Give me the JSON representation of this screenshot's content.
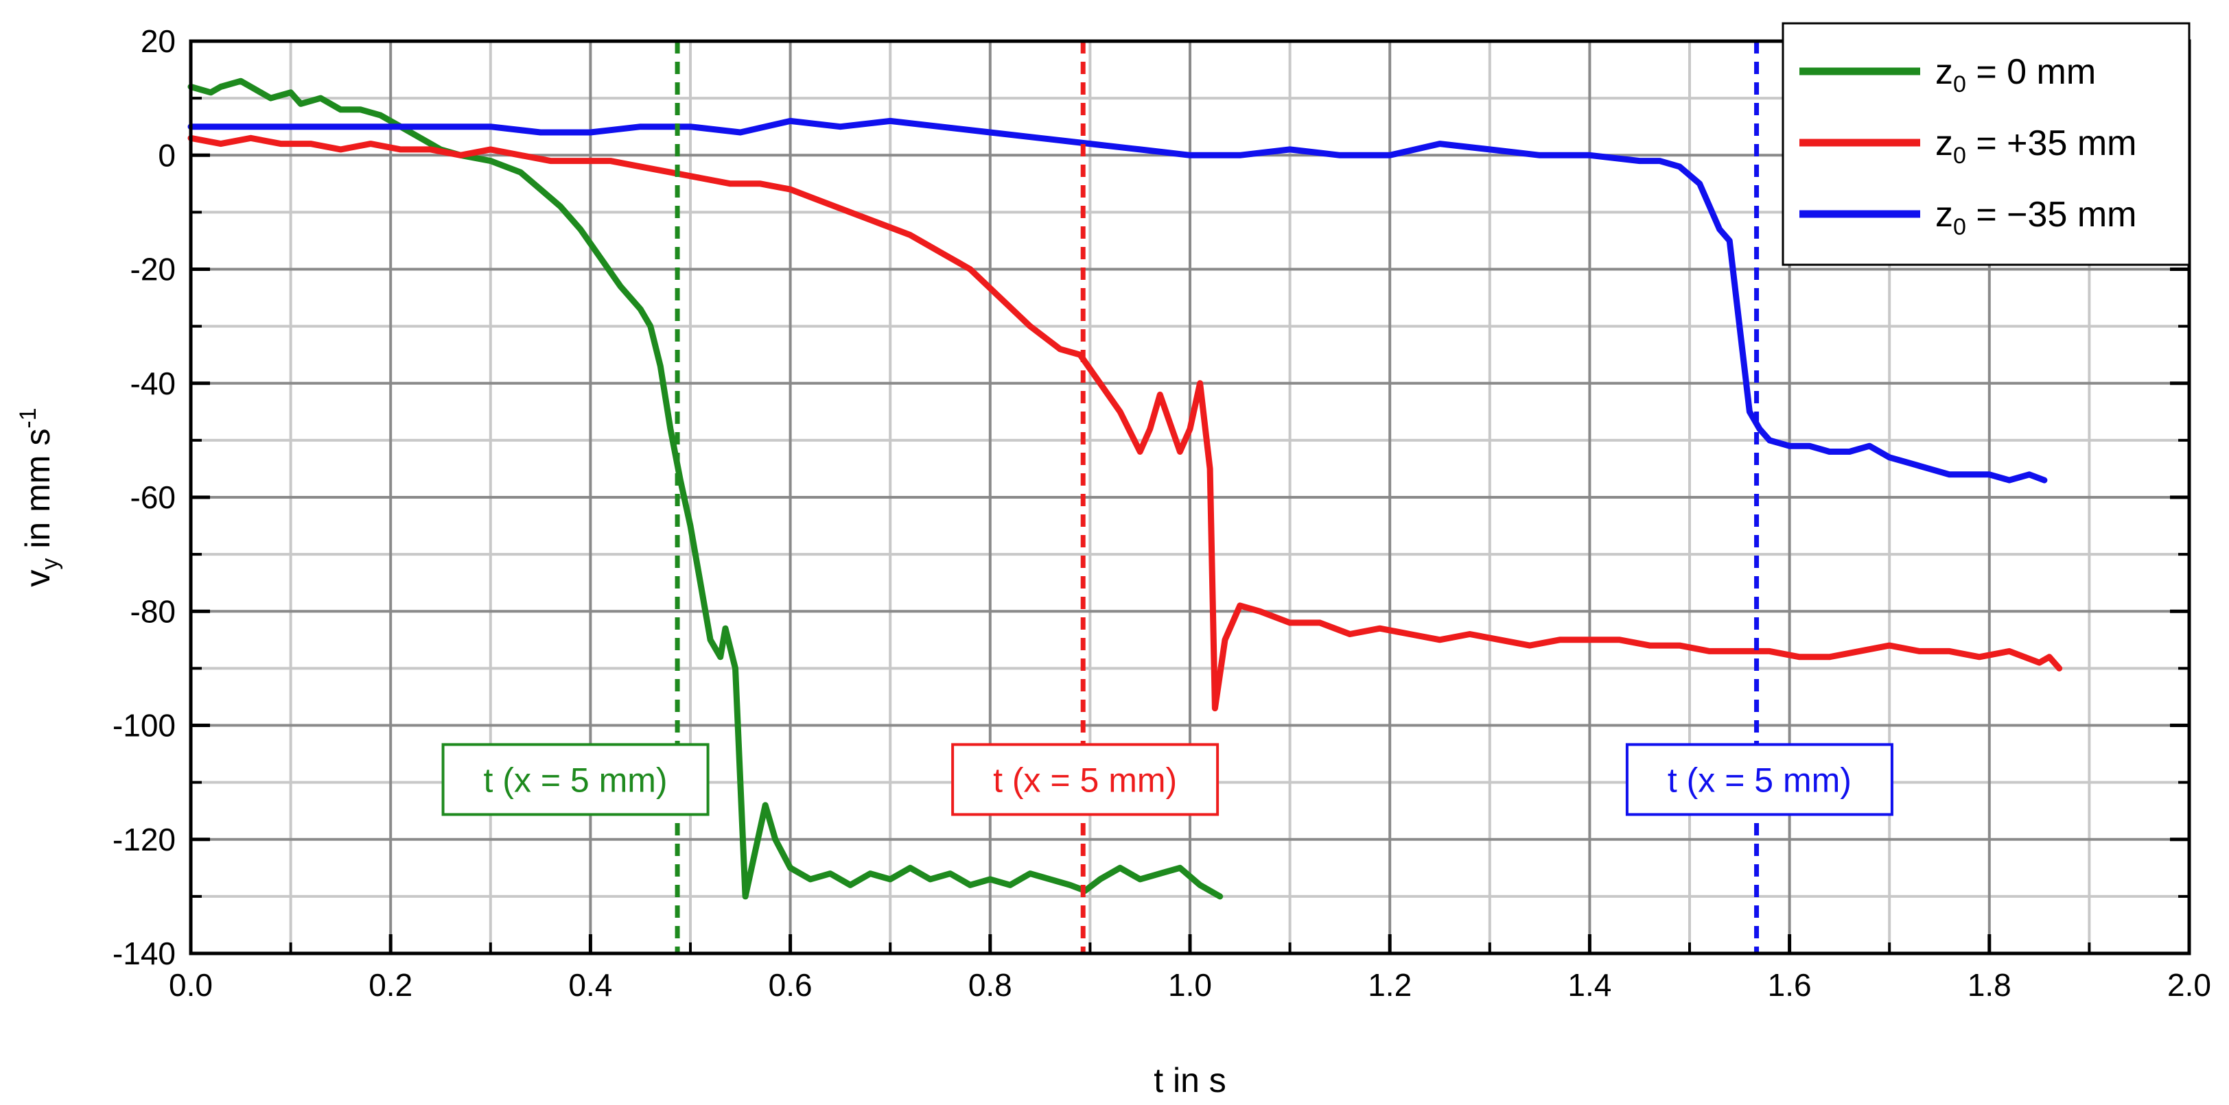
{
  "chart_data": {
    "type": "line",
    "xlabel": "t in s",
    "ylabel": {
      "main": "v",
      "sub": "y",
      "unit": " in mm s",
      "sup": "-1"
    },
    "xlim": [
      0.0,
      2.0
    ],
    "ylim": [
      -140,
      20
    ],
    "x_major_ticks": [
      0.0,
      0.2,
      0.4,
      0.6,
      0.8,
      1.0,
      1.2,
      1.4,
      1.6,
      1.8,
      2.0
    ],
    "x_tick_labels": [
      "0.0",
      "0.2",
      "0.4",
      "0.6",
      "0.8",
      "1.0",
      "1.2",
      "1.4",
      "1.6",
      "1.8",
      "2.0"
    ],
    "y_major_ticks": [
      -140,
      -120,
      -100,
      -80,
      -60,
      -40,
      -20,
      0,
      20
    ],
    "y_tick_labels": [
      "-140",
      "-120",
      "-100",
      "-80",
      "-60",
      "-40",
      "-20",
      "0",
      "20"
    ],
    "grid": true,
    "legend_position": "top-right",
    "series": [
      {
        "color": "#1e8a1e",
        "legend": {
          "sym": "z",
          "sub": "0",
          "rest": " =     0 mm"
        },
        "points": [
          [
            0.0,
            12
          ],
          [
            0.02,
            11
          ],
          [
            0.03,
            12
          ],
          [
            0.05,
            13
          ],
          [
            0.07,
            11
          ],
          [
            0.08,
            10
          ],
          [
            0.1,
            11
          ],
          [
            0.11,
            9
          ],
          [
            0.13,
            10
          ],
          [
            0.15,
            8
          ],
          [
            0.17,
            8
          ],
          [
            0.19,
            7
          ],
          [
            0.21,
            5
          ],
          [
            0.23,
            3
          ],
          [
            0.25,
            1
          ],
          [
            0.27,
            0
          ],
          [
            0.3,
            -1
          ],
          [
            0.33,
            -3
          ],
          [
            0.35,
            -6
          ],
          [
            0.37,
            -9
          ],
          [
            0.39,
            -13
          ],
          [
            0.41,
            -18
          ],
          [
            0.43,
            -23
          ],
          [
            0.45,
            -27
          ],
          [
            0.46,
            -30
          ],
          [
            0.47,
            -37
          ],
          [
            0.48,
            -48
          ],
          [
            0.49,
            -57
          ],
          [
            0.5,
            -65
          ],
          [
            0.51,
            -75
          ],
          [
            0.52,
            -85
          ],
          [
            0.53,
            -88
          ],
          [
            0.535,
            -83
          ],
          [
            0.545,
            -90
          ],
          [
            0.55,
            -110
          ],
          [
            0.555,
            -130
          ],
          [
            0.565,
            -122
          ],
          [
            0.575,
            -114
          ],
          [
            0.585,
            -120
          ],
          [
            0.6,
            -125
          ],
          [
            0.62,
            -127
          ],
          [
            0.64,
            -126
          ],
          [
            0.66,
            -128
          ],
          [
            0.68,
            -126
          ],
          [
            0.7,
            -127
          ],
          [
            0.72,
            -125
          ],
          [
            0.74,
            -127
          ],
          [
            0.76,
            -126
          ],
          [
            0.78,
            -128
          ],
          [
            0.8,
            -127
          ],
          [
            0.82,
            -128
          ],
          [
            0.84,
            -126
          ],
          [
            0.86,
            -127
          ],
          [
            0.88,
            -128
          ],
          [
            0.895,
            -129
          ],
          [
            0.91,
            -127
          ],
          [
            0.93,
            -125
          ],
          [
            0.95,
            -127
          ],
          [
            0.97,
            -126
          ],
          [
            0.99,
            -125
          ],
          [
            1.01,
            -128
          ],
          [
            1.03,
            -130
          ]
        ]
      },
      {
        "color": "#ee1c1c",
        "legend": {
          "sym": "z",
          "sub": "0",
          "rest": " = +35 mm"
        },
        "points": [
          [
            0.0,
            3
          ],
          [
            0.03,
            2
          ],
          [
            0.06,
            3
          ],
          [
            0.09,
            2
          ],
          [
            0.12,
            2
          ],
          [
            0.15,
            1
          ],
          [
            0.18,
            2
          ],
          [
            0.21,
            1
          ],
          [
            0.24,
            1
          ],
          [
            0.27,
            0
          ],
          [
            0.3,
            1
          ],
          [
            0.33,
            0
          ],
          [
            0.36,
            -1
          ],
          [
            0.39,
            -1
          ],
          [
            0.42,
            -1
          ],
          [
            0.45,
            -2
          ],
          [
            0.48,
            -3
          ],
          [
            0.51,
            -4
          ],
          [
            0.54,
            -5
          ],
          [
            0.57,
            -5
          ],
          [
            0.6,
            -6
          ],
          [
            0.63,
            -8
          ],
          [
            0.66,
            -10
          ],
          [
            0.69,
            -12
          ],
          [
            0.72,
            -14
          ],
          [
            0.75,
            -17
          ],
          [
            0.78,
            -20
          ],
          [
            0.81,
            -25
          ],
          [
            0.84,
            -30
          ],
          [
            0.87,
            -34
          ],
          [
            0.89,
            -35
          ],
          [
            0.91,
            -40
          ],
          [
            0.93,
            -45
          ],
          [
            0.95,
            -52
          ],
          [
            0.96,
            -48
          ],
          [
            0.97,
            -42
          ],
          [
            0.99,
            -52
          ],
          [
            1.0,
            -48
          ],
          [
            1.01,
            -40
          ],
          [
            1.02,
            -55
          ],
          [
            1.025,
            -97
          ],
          [
            1.035,
            -85
          ],
          [
            1.05,
            -79
          ],
          [
            1.07,
            -80
          ],
          [
            1.1,
            -82
          ],
          [
            1.13,
            -82
          ],
          [
            1.16,
            -84
          ],
          [
            1.19,
            -83
          ],
          [
            1.22,
            -84
          ],
          [
            1.25,
            -85
          ],
          [
            1.28,
            -84
          ],
          [
            1.31,
            -85
          ],
          [
            1.34,
            -86
          ],
          [
            1.37,
            -85
          ],
          [
            1.4,
            -85
          ],
          [
            1.43,
            -85
          ],
          [
            1.46,
            -86
          ],
          [
            1.49,
            -86
          ],
          [
            1.52,
            -87
          ],
          [
            1.55,
            -87
          ],
          [
            1.58,
            -87
          ],
          [
            1.61,
            -88
          ],
          [
            1.64,
            -88
          ],
          [
            1.67,
            -87
          ],
          [
            1.7,
            -86
          ],
          [
            1.73,
            -87
          ],
          [
            1.76,
            -87
          ],
          [
            1.79,
            -88
          ],
          [
            1.82,
            -87
          ],
          [
            1.85,
            -89
          ],
          [
            1.86,
            -88
          ],
          [
            1.87,
            -90
          ]
        ]
      },
      {
        "color": "#1010ee",
        "legend": {
          "sym": "z",
          "sub": "0",
          "rest": " = −35 mm"
        },
        "points": [
          [
            0.0,
            5
          ],
          [
            0.05,
            5
          ],
          [
            0.1,
            5
          ],
          [
            0.15,
            5
          ],
          [
            0.2,
            5
          ],
          [
            0.25,
            5
          ],
          [
            0.3,
            5
          ],
          [
            0.35,
            4
          ],
          [
            0.4,
            4
          ],
          [
            0.45,
            5
          ],
          [
            0.5,
            5
          ],
          [
            0.55,
            4
          ],
          [
            0.6,
            6
          ],
          [
            0.65,
            5
          ],
          [
            0.7,
            6
          ],
          [
            0.75,
            5
          ],
          [
            0.8,
            4
          ],
          [
            0.85,
            3
          ],
          [
            0.9,
            2
          ],
          [
            0.95,
            1
          ],
          [
            1.0,
            0
          ],
          [
            1.05,
            0
          ],
          [
            1.1,
            1
          ],
          [
            1.15,
            0
          ],
          [
            1.2,
            0
          ],
          [
            1.25,
            2
          ],
          [
            1.3,
            1
          ],
          [
            1.35,
            0
          ],
          [
            1.4,
            0
          ],
          [
            1.45,
            -1
          ],
          [
            1.47,
            -1
          ],
          [
            1.49,
            -2
          ],
          [
            1.51,
            -5
          ],
          [
            1.53,
            -13
          ],
          [
            1.54,
            -15
          ],
          [
            1.55,
            -30
          ],
          [
            1.56,
            -45
          ],
          [
            1.57,
            -48
          ],
          [
            1.58,
            -50
          ],
          [
            1.6,
            -51
          ],
          [
            1.62,
            -51
          ],
          [
            1.64,
            -52
          ],
          [
            1.66,
            -52
          ],
          [
            1.68,
            -51
          ],
          [
            1.7,
            -53
          ],
          [
            1.72,
            -54
          ],
          [
            1.74,
            -55
          ],
          [
            1.76,
            -56
          ],
          [
            1.78,
            -56
          ],
          [
            1.8,
            -56
          ],
          [
            1.82,
            -57
          ],
          [
            1.84,
            -56
          ],
          [
            1.855,
            -57
          ]
        ]
      }
    ],
    "annotations": [
      {
        "text": "t (x = 5 mm)",
        "x": 0.487,
        "color": "#1e8a1e",
        "label_x": 0.385,
        "label_y": -109.5
      },
      {
        "text": "t (x = 5 mm)",
        "x": 0.893,
        "color": "#ee1c1c",
        "label_x": 0.895,
        "label_y": -109.5
      },
      {
        "text": "t (x = 5 mm)",
        "x": 1.567,
        "color": "#1010ee",
        "label_x": 1.57,
        "label_y": -109.5
      }
    ]
  }
}
